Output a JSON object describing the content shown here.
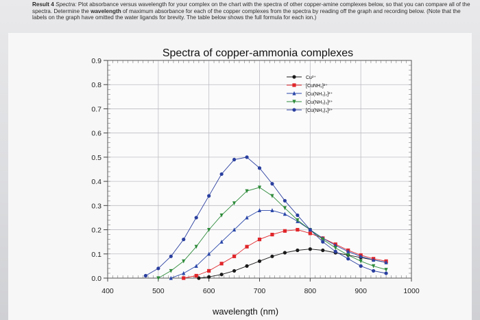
{
  "instructions": {
    "result_label": "Result 4",
    "spectra_label": "Spectra:",
    "text_1": " Plot absorbance versus wavelength for your complex on the chart with the spectra of other copper-amine complexes below, so that you can compare all of the spectra. Determine the ",
    "bold_word": "wavelength",
    "text_2": " of maximum absorbance for each of the copper complexes from the spectra by reading off the graph and recording below. (Note that the labels on the graph have omitted the water ligands for brevity. The table below shows the full formula for each ion.)"
  },
  "chart_data": {
    "type": "line",
    "title": "Spectra of copper-ammonia complexes",
    "xlabel": "wavelength (nm)",
    "ylabel": "",
    "xlim": [
      400,
      1000
    ],
    "ylim": [
      0.0,
      0.9
    ],
    "xticks": [
      400,
      500,
      600,
      700,
      800,
      900,
      1000
    ],
    "xtick_labels": [
      "400",
      "500",
      "600",
      "700",
      "800",
      "900",
      "1000"
    ],
    "yticks": [
      0.0,
      0.1,
      0.2,
      0.3,
      0.4,
      0.5,
      0.6,
      0.7,
      0.8,
      0.9
    ],
    "ytick_labels": [
      "0.0",
      "0.1",
      "0.2",
      "0.3",
      "0.4",
      "0.5",
      "0.6",
      "0.7",
      "0.8",
      "0.9"
    ],
    "grid": true,
    "legend_position": "top-right",
    "series": [
      {
        "name": "Cu²⁺",
        "color": "#1a1a1a",
        "marker": "circle",
        "x": [
          580,
          600,
          625,
          650,
          675,
          700,
          725,
          750,
          775,
          800,
          825,
          850,
          875,
          900,
          925,
          950
        ],
        "y": [
          0.0,
          0.005,
          0.015,
          0.03,
          0.05,
          0.07,
          0.09,
          0.105,
          0.115,
          0.12,
          0.115,
          0.105,
          0.095,
          0.085,
          0.075,
          0.065
        ]
      },
      {
        "name": "[CuNH₃]²⁺",
        "color": "#e0262a",
        "marker": "square",
        "x": [
          550,
          575,
          600,
          625,
          650,
          675,
          700,
          725,
          750,
          775,
          800,
          825,
          850,
          875,
          900,
          925,
          950
        ],
        "y": [
          0.0,
          0.01,
          0.03,
          0.06,
          0.09,
          0.13,
          0.16,
          0.18,
          0.195,
          0.2,
          0.185,
          0.165,
          0.14,
          0.115,
          0.095,
          0.08,
          0.07
        ]
      },
      {
        "name": "[Cu(NH₃)₂]²⁺",
        "color": "#2a47a8",
        "marker": "triangle-up",
        "x": [
          525,
          550,
          575,
          600,
          625,
          650,
          675,
          700,
          725,
          750,
          775,
          800,
          825,
          850,
          875,
          900,
          925,
          950
        ],
        "y": [
          0.0,
          0.02,
          0.05,
          0.1,
          0.15,
          0.2,
          0.25,
          0.28,
          0.28,
          0.265,
          0.235,
          0.2,
          0.165,
          0.135,
          0.11,
          0.09,
          0.075,
          0.065
        ]
      },
      {
        "name": "[Cu(NH₃)₃]²⁺",
        "color": "#2e8b3a",
        "marker": "triangle-down",
        "x": [
          500,
          525,
          550,
          575,
          600,
          625,
          650,
          675,
          700,
          725,
          750,
          775,
          800,
          825,
          850,
          875,
          900,
          925,
          950
        ],
        "y": [
          0.0,
          0.03,
          0.07,
          0.13,
          0.2,
          0.26,
          0.31,
          0.36,
          0.375,
          0.34,
          0.29,
          0.24,
          0.2,
          0.16,
          0.125,
          0.095,
          0.07,
          0.05,
          0.035
        ]
      },
      {
        "name": "[Cu(NH₃)₄]²⁺",
        "color": "#2a3f9e",
        "marker": "circle",
        "x": [
          475,
          500,
          525,
          550,
          575,
          600,
          625,
          650,
          675,
          700,
          725,
          750,
          775,
          800,
          825,
          850,
          875,
          900,
          925,
          950
        ],
        "y": [
          0.01,
          0.04,
          0.09,
          0.16,
          0.25,
          0.34,
          0.43,
          0.49,
          0.5,
          0.455,
          0.39,
          0.32,
          0.26,
          0.2,
          0.15,
          0.11,
          0.08,
          0.05,
          0.03,
          0.02
        ]
      }
    ]
  }
}
